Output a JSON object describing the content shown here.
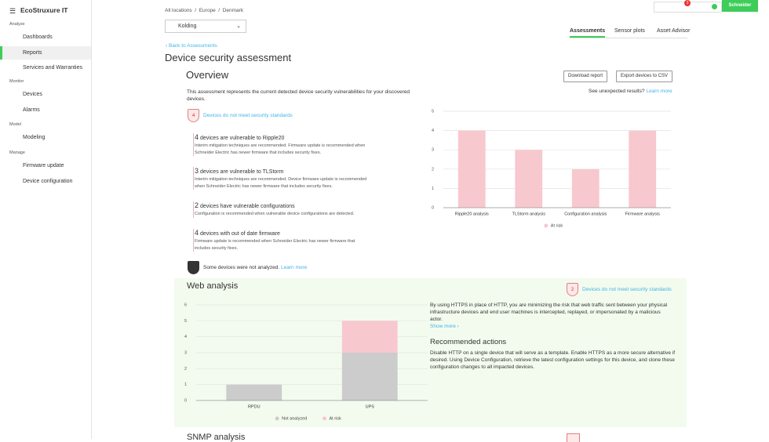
{
  "sidebar": {
    "brand": "EcoStruxure IT",
    "sections": [
      {
        "title": "Analyze",
        "items": [
          "Dashboards",
          "Reports",
          "Services and Warranties"
        ]
      },
      {
        "title": "Monitor",
        "items": [
          "Devices",
          "Alarms"
        ]
      },
      {
        "title": "Model",
        "items": [
          "Modeling"
        ]
      },
      {
        "title": "Manage",
        "items": [
          "Firmware update",
          "Device configuration"
        ]
      }
    ]
  },
  "header": {
    "breadcrumb": [
      "All locations",
      "Europe",
      "Denmark"
    ],
    "location": "Kolding",
    "notifications": 3,
    "logo": "Schneider",
    "tabs": [
      "Assessments",
      "Sensor plots",
      "Asset Advisor"
    ]
  },
  "back_link": "Back to Assessments",
  "title": "Device security assessment",
  "overview": {
    "title": "Overview",
    "buttons": [
      "Download report",
      "Export devices to CSV"
    ],
    "description": "This assessment represents the current detected device security vulnerabilities for your discovered devices.",
    "unexpected": "See unexpected results?",
    "learn_more": "Learn more",
    "badge_count": 4,
    "badge_text": "Devices do not meet security standards",
    "items": [
      {
        "count": 4,
        "text": "devices are vulnerable to Ripple20",
        "detail": "Interim mitigation techniques are recommended. Firmware update is recommended when Schneider Electric has newer firmware that includes security fixes."
      },
      {
        "count": 3,
        "text": "devices are vulnerable to TLStorm",
        "detail": "Interim mitigation techniques are recommended. Device firmware update is recommended when Schneider Electric has newer firmware that includes security fixes."
      },
      {
        "count": 2,
        "text": "devices have vulnerable configurations",
        "detail": "Configuration is recommended when vulnerable device configurations are detected."
      },
      {
        "count": 4,
        "text": "devices with out of date firmware",
        "detail": "Firmware update is recommended when Schneider Electric has newer firmware that includes security fixes."
      }
    ],
    "not_analyzed": "Some devices were not analyzed.",
    "not_analyzed_link": "Learn more"
  },
  "web_analysis": {
    "title": "Web analysis",
    "badge_count": 2,
    "badge_text": "Devices do not meet security standards",
    "description": "By using HTTPS in place of HTTP, you are minimizing the risk that web traffic sent between your physical infrastructure devices and end user machines is intercepted, replayed, or impersonated by a malicious actor.",
    "show_more": "Show more",
    "actions_title": "Recommended actions",
    "actions": "Disable HTTP on a single device that will serve as a template. Enable HTTPS as a more secure alternative if desired. Using Device Configuration, retrieve the latest configuration settings for this device, and clone these configuration changes to all impacted devices."
  },
  "next_section": "SNMP analysis",
  "chart_data": [
    {
      "type": "bar",
      "categories": [
        "Ripple20 analysis",
        "TLStorm analysis",
        "Configuration analysis",
        "Firmware analysis"
      ],
      "series": [
        {
          "name": "At risk",
          "color": "#f8c8cf",
          "values": [
            4,
            3,
            2,
            4
          ]
        }
      ],
      "ylim": [
        0,
        5
      ],
      "yticks": [
        0,
        1,
        2,
        3,
        4,
        5
      ],
      "grid": true,
      "legend": "bottom"
    },
    {
      "type": "bar",
      "stacked": true,
      "categories": [
        "RPDU",
        "UPS"
      ],
      "series": [
        {
          "name": "Not analyzed",
          "color": "#cccccc",
          "values": [
            1,
            3
          ]
        },
        {
          "name": "At risk",
          "color": "#f8c8cf",
          "values": [
            0,
            2
          ]
        }
      ],
      "ylim": [
        0,
        6
      ],
      "yticks": [
        0,
        1,
        2,
        3,
        4,
        5,
        6
      ],
      "grid": true,
      "legend": "bottom"
    }
  ]
}
